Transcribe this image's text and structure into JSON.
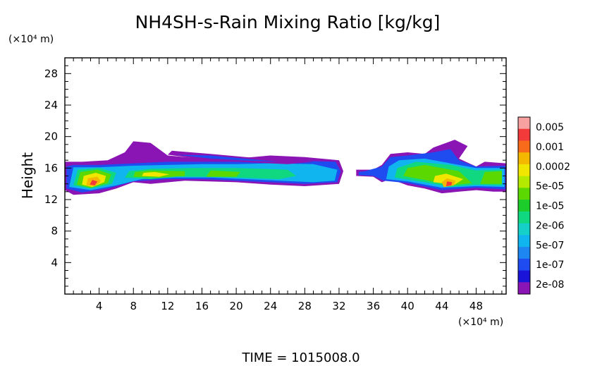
{
  "chart_data": {
    "type": "heatmap",
    "title": "NH4SH-s-Rain Mixing Ratio [kg/kg]",
    "xlabel": "(×10⁴ m)",
    "ylabel": "Height",
    "y_unit_label": "(×10⁴ m)",
    "xlim": [
      0,
      51.5
    ],
    "ylim": [
      0,
      30
    ],
    "x_ticks": [
      "4",
      "8",
      "12",
      "16",
      "20",
      "24",
      "28",
      "32",
      "36",
      "40",
      "44",
      "48"
    ],
    "y_ticks": [
      "4",
      "8",
      "12",
      "16",
      "20",
      "24",
      "28"
    ],
    "colorbar": {
      "labels": [
        "0.005",
        "0.001",
        "0.0002",
        "5e-05",
        "1e-05",
        "2e-06",
        "5e-07",
        "1e-07",
        "2e-08"
      ],
      "colors": [
        "#f7a1a1",
        "#f23a3a",
        "#f76b1a",
        "#f5b800",
        "#f0e600",
        "#b5ea00",
        "#5ad800",
        "#1ccc2a",
        "#10d880",
        "#14d0c8",
        "#10b4ee",
        "#1d86f0",
        "#1f4cf0",
        "#1a14d8",
        "#8a14b4"
      ]
    },
    "regions": [
      {
        "level": "2e-08",
        "color": "#8a14b4",
        "polygon": [
          [
            0,
            13.2
          ],
          [
            1,
            12.6
          ],
          [
            4,
            12.8
          ],
          [
            6,
            13.4
          ],
          [
            8,
            14.2
          ],
          [
            10,
            14.0
          ],
          [
            14,
            14.4
          ],
          [
            20,
            14.2
          ],
          [
            24,
            13.9
          ],
          [
            28,
            13.7
          ],
          [
            32,
            14.0
          ],
          [
            32.5,
            15.6
          ],
          [
            32,
            17.0
          ],
          [
            28,
            17.4
          ],
          [
            24,
            17.6
          ],
          [
            20,
            17.2
          ],
          [
            16,
            17.2
          ],
          [
            12,
            17.6
          ],
          [
            10,
            19.2
          ],
          [
            8,
            19.4
          ],
          [
            7,
            18.0
          ],
          [
            5,
            17.0
          ],
          [
            2,
            16.8
          ],
          [
            0,
            16.8
          ]
        ]
      },
      {
        "level": "2e-08",
        "color": "#8a14b4",
        "polygon": [
          [
            34,
            15.0
          ],
          [
            36,
            14.9
          ],
          [
            37,
            14.2
          ],
          [
            38,
            14.6
          ],
          [
            40,
            13.8
          ],
          [
            42,
            13.4
          ],
          [
            44,
            12.8
          ],
          [
            46,
            13.0
          ],
          [
            48,
            13.2
          ],
          [
            50,
            13.0
          ],
          [
            51.5,
            13.0
          ],
          [
            51.5,
            16.6
          ],
          [
            49,
            16.8
          ],
          [
            48,
            16.2
          ],
          [
            46,
            17.2
          ],
          [
            47,
            18.8
          ],
          [
            45.5,
            19.6
          ],
          [
            43,
            18.6
          ],
          [
            42,
            17.8
          ],
          [
            40,
            18.0
          ],
          [
            38,
            17.8
          ],
          [
            37,
            16.4
          ],
          [
            36,
            15.8
          ],
          [
            34,
            15.8
          ]
        ]
      },
      {
        "level": "1e-07",
        "color": "#1f4cf0",
        "polygon": [
          [
            0.2,
            13.4
          ],
          [
            2,
            12.9
          ],
          [
            5,
            13.4
          ],
          [
            8,
            14.3
          ],
          [
            12,
            14.6
          ],
          [
            16,
            14.6
          ],
          [
            20,
            14.4
          ],
          [
            24,
            14.2
          ],
          [
            28,
            14.0
          ],
          [
            31.8,
            14.2
          ],
          [
            32.2,
            15.6
          ],
          [
            31.6,
            16.8
          ],
          [
            28,
            16.9
          ],
          [
            24,
            17.0
          ],
          [
            20,
            16.8
          ],
          [
            16,
            16.8
          ],
          [
            12,
            16.8
          ],
          [
            8,
            16.6
          ],
          [
            4,
            16.4
          ],
          [
            1,
            16.4
          ],
          [
            0.2,
            16.2
          ]
        ]
      },
      {
        "level": "1e-07",
        "color": "#1f4cf0",
        "polygon": [
          [
            34.3,
            15.1
          ],
          [
            36,
            15.0
          ],
          [
            37.2,
            14.4
          ],
          [
            40,
            14.1
          ],
          [
            44,
            13.2
          ],
          [
            48,
            13.5
          ],
          [
            51.4,
            13.3
          ],
          [
            51.4,
            16.3
          ],
          [
            48,
            16.2
          ],
          [
            46,
            17.0
          ],
          [
            45,
            18.4
          ],
          [
            43,
            18.0
          ],
          [
            40,
            17.6
          ],
          [
            38,
            17.4
          ],
          [
            37,
            16.2
          ],
          [
            35,
            15.6
          ],
          [
            34.3,
            15.5
          ]
        ]
      },
      {
        "level": "5e-07",
        "color": "#10b4ee",
        "polygon": [
          [
            0.5,
            13.6
          ],
          [
            3,
            13.2
          ],
          [
            6,
            13.8
          ],
          [
            9,
            14.6
          ],
          [
            13,
            14.8
          ],
          [
            17,
            14.8
          ],
          [
            21,
            14.6
          ],
          [
            25,
            14.4
          ],
          [
            29,
            14.2
          ],
          [
            31.5,
            14.4
          ],
          [
            31.8,
            15.8
          ],
          [
            29,
            16.5
          ],
          [
            24,
            16.6
          ],
          [
            20,
            16.5
          ],
          [
            16,
            16.5
          ],
          [
            12,
            16.4
          ],
          [
            8,
            16.3
          ],
          [
            4,
            16.1
          ],
          [
            1,
            16.1
          ]
        ]
      },
      {
        "level": "5e-07",
        "color": "#10b4ee",
        "polygon": [
          [
            37.5,
            14.6
          ],
          [
            40,
            14.3
          ],
          [
            44,
            13.5
          ],
          [
            48,
            13.7
          ],
          [
            51.3,
            13.6
          ],
          [
            51.3,
            16.0
          ],
          [
            48,
            16.0
          ],
          [
            45,
            16.6
          ],
          [
            42,
            17.2
          ],
          [
            39,
            17.0
          ],
          [
            37.8,
            16.2
          ]
        ]
      },
      {
        "level": "2e-06",
        "color": "#10d880",
        "polygon": [
          [
            1,
            13.8
          ],
          [
            3,
            13.4
          ],
          [
            5.5,
            14.0
          ],
          [
            6,
            15.4
          ],
          [
            4,
            16.0
          ],
          [
            1.5,
            15.8
          ]
        ]
      },
      {
        "level": "2e-06",
        "color": "#10d880",
        "polygon": [
          [
            7,
            14.8
          ],
          [
            10,
            14.6
          ],
          [
            13,
            14.9
          ],
          [
            16,
            14.9
          ],
          [
            20,
            14.8
          ],
          [
            25,
            14.6
          ],
          [
            27,
            15.0
          ],
          [
            26,
            15.8
          ],
          [
            20,
            16.0
          ],
          [
            15,
            16.0
          ],
          [
            10,
            15.9
          ],
          [
            7.5,
            15.6
          ]
        ]
      },
      {
        "level": "2e-06",
        "color": "#10d880",
        "polygon": [
          [
            38.5,
            14.8
          ],
          [
            42,
            14.2
          ],
          [
            45,
            13.6
          ],
          [
            48,
            13.9
          ],
          [
            51,
            13.8
          ],
          [
            51,
            15.8
          ],
          [
            48,
            15.7
          ],
          [
            45,
            16.4
          ],
          [
            41,
            16.8
          ],
          [
            38.8,
            16.0
          ]
        ]
      },
      {
        "level": "1e-05",
        "color": "#5ad800",
        "polygon": [
          [
            1.4,
            13.9
          ],
          [
            3,
            13.5
          ],
          [
            5,
            14.1
          ],
          [
            5.4,
            15.2
          ],
          [
            3.8,
            15.8
          ],
          [
            1.8,
            15.5
          ]
        ]
      },
      {
        "level": "1e-05",
        "color": "#5ad800",
        "polygon": [
          [
            8,
            14.9
          ],
          [
            11,
            14.8
          ],
          [
            14,
            15.0
          ],
          [
            14,
            15.6
          ],
          [
            10,
            15.7
          ],
          [
            8.2,
            15.5
          ]
        ]
      },
      {
        "level": "1e-05",
        "color": "#5ad800",
        "polygon": [
          [
            16.5,
            14.9
          ],
          [
            20,
            14.9
          ],
          [
            20.5,
            15.5
          ],
          [
            17,
            15.7
          ]
        ]
      },
      {
        "level": "1e-05",
        "color": "#5ad800",
        "polygon": [
          [
            39.5,
            15.0
          ],
          [
            42,
            14.5
          ],
          [
            45,
            13.8
          ],
          [
            47.5,
            14.1
          ],
          [
            46,
            15.6
          ],
          [
            42,
            16.4
          ],
          [
            40,
            16.0
          ]
        ]
      },
      {
        "level": "1e-05",
        "color": "#5ad800",
        "polygon": [
          [
            48.5,
            14.0
          ],
          [
            51,
            14.0
          ],
          [
            51,
            15.6
          ],
          [
            49,
            15.5
          ]
        ]
      },
      {
        "level": "5e-05",
        "color": "#f0e600",
        "polygon": [
          [
            2,
            13.9
          ],
          [
            3.2,
            13.6
          ],
          [
            4.6,
            14.2
          ],
          [
            4.8,
            15.0
          ],
          [
            3.6,
            15.4
          ],
          [
            2.2,
            15.0
          ]
        ]
      },
      {
        "level": "5e-05",
        "color": "#f0e600",
        "polygon": [
          [
            9,
            15.0
          ],
          [
            11,
            14.9
          ],
          [
            12.2,
            15.2
          ],
          [
            10.5,
            15.5
          ],
          [
            9.2,
            15.4
          ]
        ]
      },
      {
        "level": "5e-05",
        "color": "#f0e600",
        "polygon": [
          [
            43,
            14.2
          ],
          [
            45.5,
            13.9
          ],
          [
            46.5,
            14.6
          ],
          [
            44.5,
            15.3
          ],
          [
            43.2,
            15.0
          ]
        ]
      },
      {
        "level": "0.0002",
        "color": "#f5b800",
        "polygon": [
          [
            2.5,
            13.8
          ],
          [
            3.5,
            13.7
          ],
          [
            4.2,
            14.3
          ],
          [
            3.8,
            14.9
          ],
          [
            2.7,
            14.7
          ]
        ]
      },
      {
        "level": "0.0002",
        "color": "#f5b800",
        "polygon": [
          [
            44.2,
            13.6
          ],
          [
            45.4,
            13.8
          ],
          [
            45.6,
            14.4
          ],
          [
            44.6,
            14.7
          ],
          [
            44.0,
            14.2
          ]
        ]
      },
      {
        "level": "0.001",
        "color": "#f23a3a",
        "polygon": [
          [
            2.9,
            13.9
          ],
          [
            3.5,
            13.8
          ],
          [
            3.8,
            14.3
          ],
          [
            3.2,
            14.5
          ]
        ]
      },
      {
        "level": "0.001",
        "color": "#f23a3a",
        "polygon": [
          [
            44.5,
            13.7
          ],
          [
            45.1,
            13.8
          ],
          [
            45.2,
            14.2
          ],
          [
            44.6,
            14.3
          ]
        ]
      },
      {
        "level": "2e-08",
        "color": "#8a14b4",
        "polygon": [
          [
            12,
            17.7
          ],
          [
            17,
            17.0
          ],
          [
            22,
            16.7
          ],
          [
            26,
            16.5
          ],
          [
            29,
            16.8
          ],
          [
            26,
            17.2
          ],
          [
            22,
            17.3
          ],
          [
            17,
            17.8
          ],
          [
            12.5,
            18.2
          ]
        ]
      },
      {
        "level": "1e-07",
        "color": "#1f4cf0",
        "polygon": [
          [
            13,
            17.7
          ],
          [
            17,
            17.2
          ],
          [
            22,
            16.9
          ],
          [
            25,
            16.8
          ],
          [
            22,
            17.1
          ],
          [
            17,
            17.6
          ]
        ]
      }
    ]
  },
  "footer": {
    "time_label": "TIME = 1015008.0"
  }
}
